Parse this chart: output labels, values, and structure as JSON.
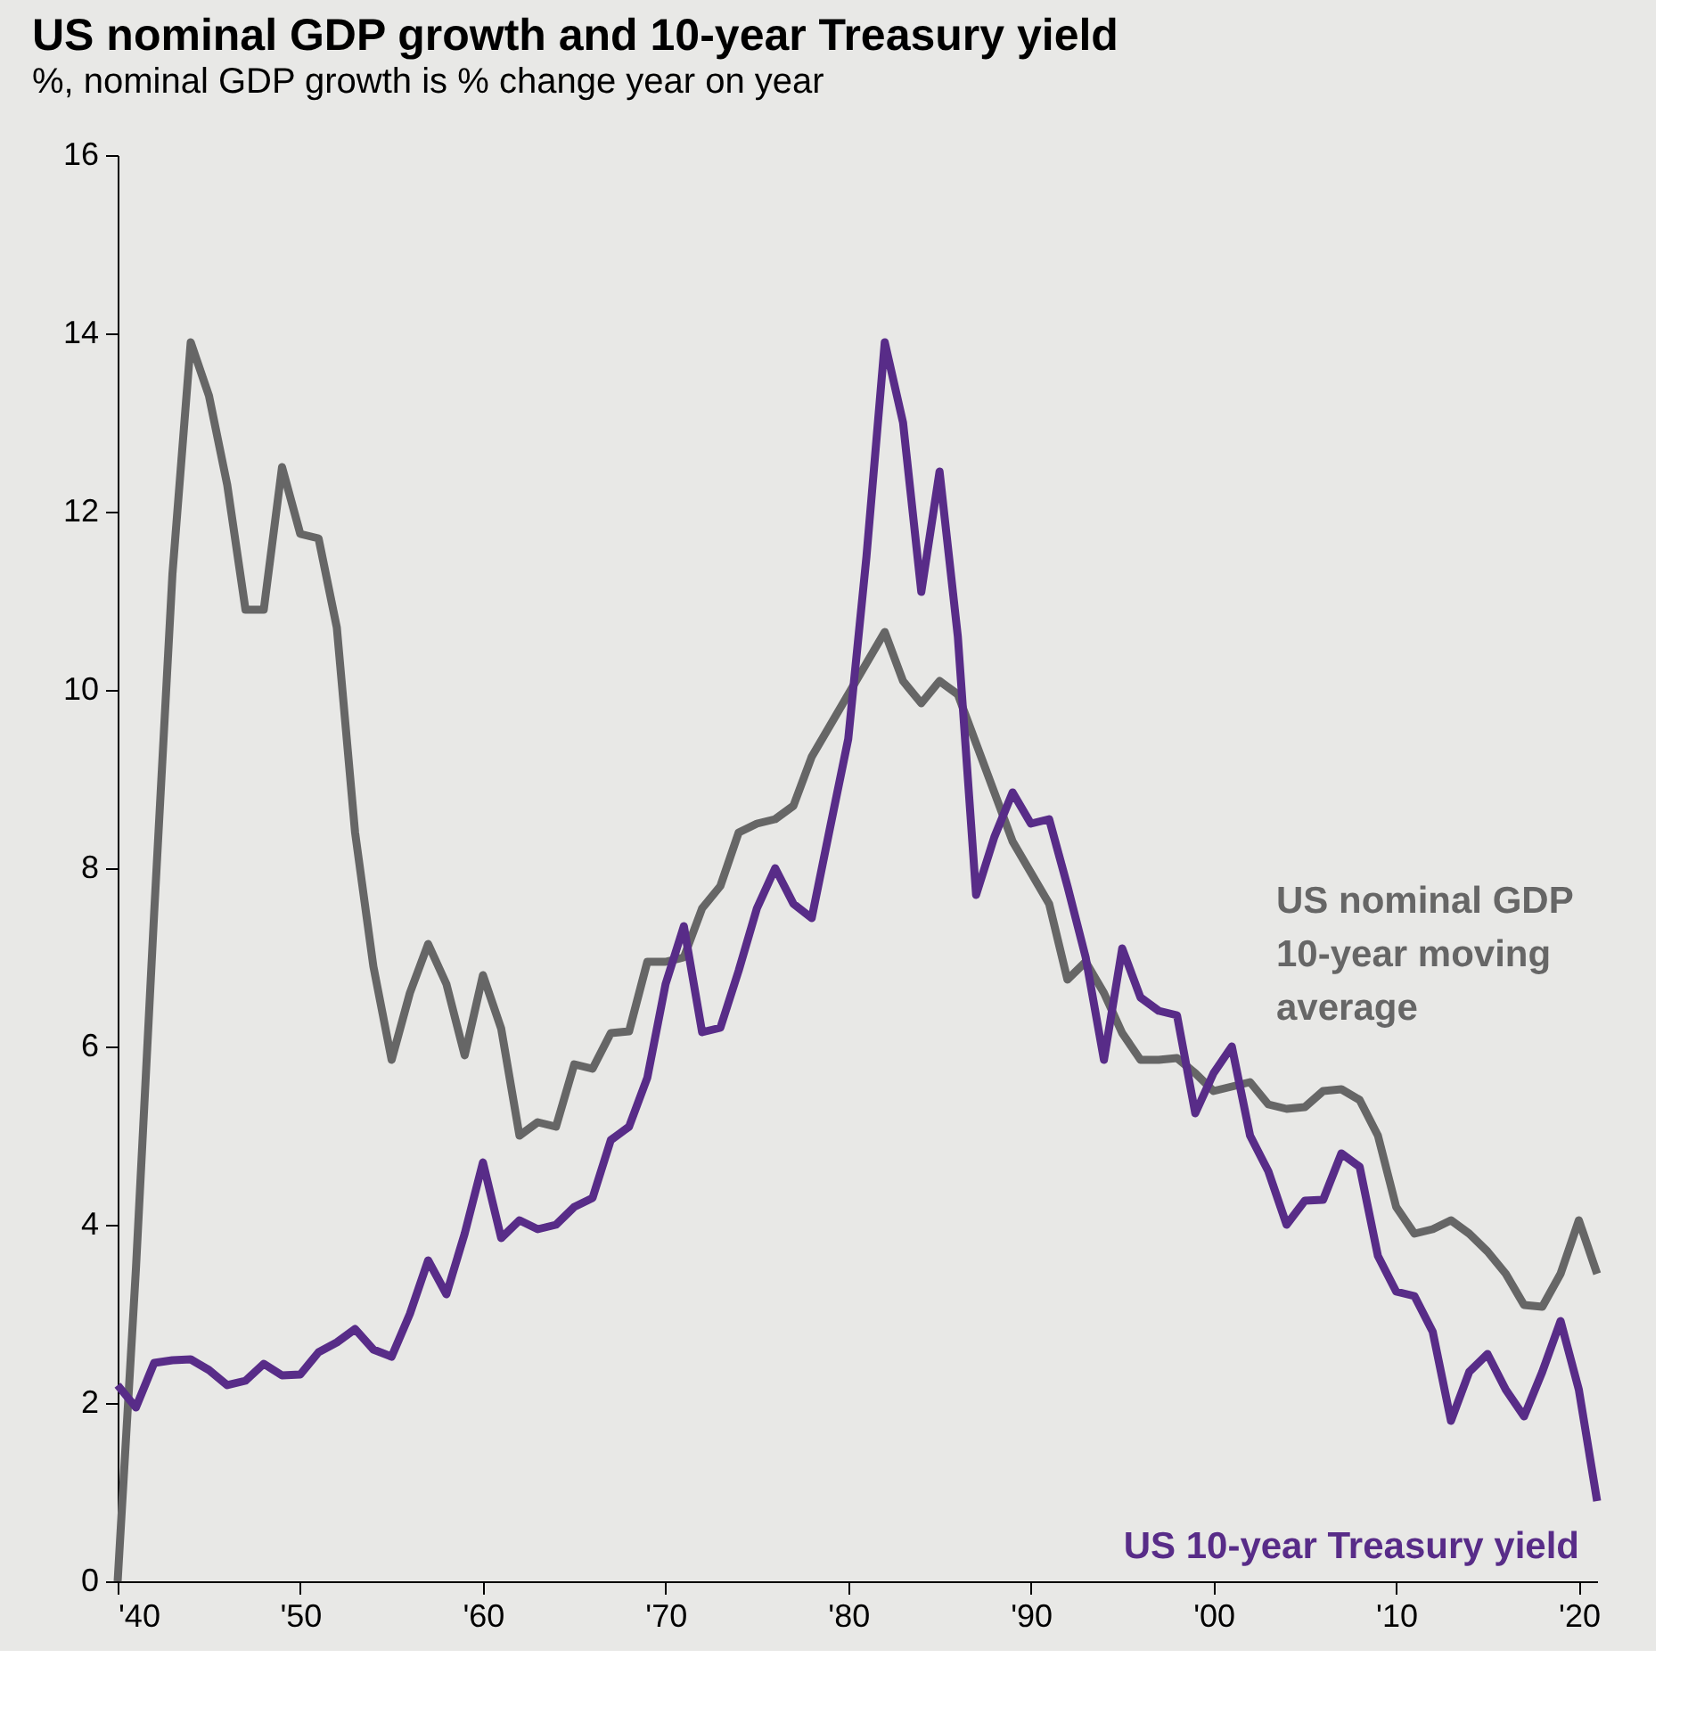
{
  "chart_data": {
    "type": "line",
    "title": "US nominal GDP growth and 10-year Treasury yield",
    "subtitle": "%, nominal GDP growth is % change year on year",
    "x": [
      1940,
      1941,
      1942,
      1943,
      1944,
      1945,
      1946,
      1947,
      1948,
      1949,
      1950,
      1951,
      1952,
      1953,
      1954,
      1955,
      1956,
      1957,
      1958,
      1959,
      1960,
      1961,
      1962,
      1963,
      1964,
      1965,
      1966,
      1967,
      1968,
      1969,
      1970,
      1971,
      1972,
      1973,
      1974,
      1975,
      1976,
      1977,
      1978,
      1979,
      1980,
      1981,
      1982,
      1983,
      1984,
      1985,
      1986,
      1987,
      1988,
      1989,
      1990,
      1991,
      1992,
      1993,
      1994,
      1995,
      1996,
      1997,
      1998,
      1999,
      2000,
      2001,
      2002,
      2003,
      2004,
      2005,
      2006,
      2007,
      2008,
      2009,
      2010,
      2011,
      2012,
      2013,
      2014,
      2015,
      2016,
      2017,
      2018,
      2019,
      2020,
      2021
    ],
    "series": [
      {
        "name": "US nominal GDP 10-year moving average",
        "color": "#666666",
        "values": [
          0,
          3.5,
          7.5,
          11.3,
          13.9,
          13.3,
          12.3,
          10.9,
          10.9,
          12.5,
          11.75,
          11.7,
          10.7,
          8.4,
          6.9,
          5.85,
          6.6,
          7.15,
          6.7,
          5.9,
          6.8,
          6.2,
          5.0,
          5.15,
          5.1,
          5.8,
          5.75,
          6.15,
          6.17,
          6.95,
          6.95,
          7.0,
          7.55,
          7.8,
          8.4,
          8.5,
          8.55,
          8.7,
          9.25,
          9.6,
          9.95,
          10.3,
          10.65,
          10.1,
          9.85,
          10.1,
          9.95,
          9.4,
          8.85,
          8.3,
          7.95,
          7.6,
          6.75,
          6.95,
          6.6,
          6.15,
          5.85,
          5.85,
          5.87,
          5.7,
          5.5,
          5.55,
          5.6,
          5.35,
          5.3,
          5.32,
          5.5,
          5.52,
          5.4,
          5.0,
          4.2,
          3.9,
          3.95,
          4.05,
          3.9,
          3.7,
          3.45,
          3.1,
          3.08,
          3.45,
          4.05,
          3.45
        ]
      },
      {
        "name": "US 10-year Treasury yield",
        "color": "#582c88",
        "values": [
          2.2,
          1.95,
          2.45,
          2.48,
          2.49,
          2.37,
          2.2,
          2.25,
          2.44,
          2.31,
          2.32,
          2.57,
          2.68,
          2.83,
          2.6,
          2.52,
          3.0,
          3.6,
          3.22,
          3.9,
          4.7,
          3.85,
          4.05,
          3.95,
          4.0,
          4.2,
          4.3,
          4.95,
          5.1,
          5.65,
          6.7,
          7.35,
          6.16,
          6.21,
          6.85,
          7.55,
          8.0,
          7.6,
          7.44,
          8.45,
          9.45,
          11.5,
          13.9,
          13.0,
          11.1,
          12.45,
          10.6,
          7.7,
          8.35,
          8.85,
          8.5,
          8.55,
          7.8,
          7.0,
          5.85,
          7.1,
          6.55,
          6.4,
          6.35,
          5.25,
          5.7,
          6.0,
          5.0,
          4.6,
          4.0,
          4.27,
          4.28,
          4.8,
          4.65,
          3.65,
          3.25,
          3.2,
          2.8,
          1.8,
          2.35,
          2.55,
          2.15,
          1.85,
          2.35,
          2.92,
          2.15,
          0.9
        ]
      }
    ],
    "xlim": [
      1940,
      2021
    ],
    "xticks": [
      {
        "value": 1940,
        "label": "'40"
      },
      {
        "value": 1950,
        "label": "'50"
      },
      {
        "value": 1960,
        "label": "'60"
      },
      {
        "value": 1970,
        "label": "'70"
      },
      {
        "value": 1980,
        "label": "'80"
      },
      {
        "value": 1990,
        "label": "'90"
      },
      {
        "value": 2000,
        "label": "'00"
      },
      {
        "value": 2010,
        "label": "'10"
      },
      {
        "value": 2020,
        "label": "'20"
      }
    ],
    "ylim": [
      0,
      16
    ],
    "yticks": [
      0,
      2,
      4,
      6,
      8,
      10,
      12,
      14,
      16
    ],
    "grid": false,
    "marker": "none",
    "line_style": "solid"
  }
}
